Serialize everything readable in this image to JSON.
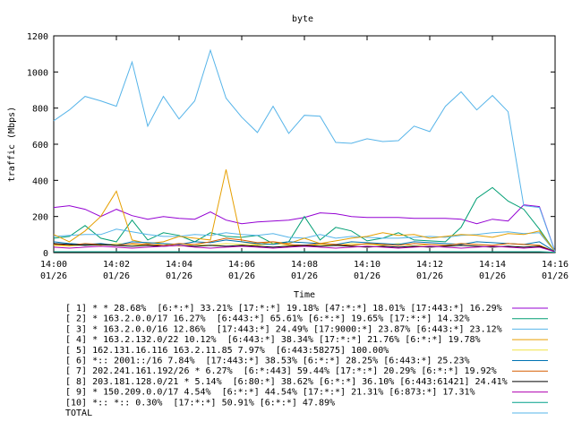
{
  "chart_data": {
    "type": "line",
    "title": "byte",
    "xlabel": "Time",
    "ylabel": "traffic (Mbps)",
    "ylim": [
      0,
      1200
    ],
    "yticks": [
      "0",
      "200",
      "400",
      "600",
      "800",
      "1000",
      "1200"
    ],
    "xlim": [
      0,
      32
    ],
    "xticks": [
      {
        "time": "14:00",
        "date": "01/26"
      },
      {
        "time": "14:02",
        "date": "01/26"
      },
      {
        "time": "14:04",
        "date": "01/26"
      },
      {
        "time": "14:06",
        "date": "01/26"
      },
      {
        "time": "14:08",
        "date": "01/26"
      },
      {
        "time": "14:10",
        "date": "01/26"
      },
      {
        "time": "14:12",
        "date": "01/26"
      },
      {
        "time": "14:14",
        "date": "01/26"
      },
      {
        "time": "14:16",
        "date": "01/26"
      }
    ],
    "x": [
      0,
      1,
      2,
      3,
      4,
      5,
      6,
      7,
      8,
      9,
      10,
      11,
      12,
      13,
      14,
      15,
      16,
      17,
      18,
      19,
      20,
      21,
      22,
      23,
      24,
      25,
      26,
      27,
      28,
      29,
      30,
      31,
      32
    ],
    "series": [
      {
        "name": "[ 1] * * 28.68%  [6:*:*] 33.21% [17:*:*] 19.18% [47:*:*] 18.01% [17:443:*] 16.29%",
        "color": "#9400d3",
        "values": [
          250,
          260,
          240,
          200,
          240,
          205,
          185,
          200,
          190,
          185,
          225,
          180,
          160,
          170,
          175,
          180,
          195,
          220,
          215,
          200,
          195,
          195,
          195,
          190,
          190,
          190,
          185,
          160,
          185,
          175,
          265,
          255,
          5
        ]
      },
      {
        "name": "[ 2] * 163.2.0.0/17 16.27%  [6:443:*] 65.61% [6:*:*] 19.65% [17:*:*] 14.32%",
        "color": "#009e73",
        "values": [
          80,
          90,
          150,
          80,
          60,
          180,
          70,
          110,
          95,
          60,
          110,
          90,
          85,
          95,
          50,
          60,
          200,
          70,
          140,
          120,
          65,
          80,
          110,
          70,
          65,
          60,
          140,
          300,
          360,
          285,
          240,
          130,
          5
        ]
      },
      {
        "name": "[ 3] * 163.2.0.0/16 12.86%  [17:443:*] 24.49% [17:9000:*] 23.87% [6:443:*] 23.12%",
        "color": "#56b4e9",
        "values": [
          90,
          95,
          100,
          100,
          130,
          115,
          100,
          90,
          90,
          100,
          95,
          110,
          100,
          95,
          105,
          85,
          80,
          100,
          80,
          90,
          85,
          80,
          80,
          85,
          90,
          85,
          95,
          100,
          110,
          115,
          105,
          110,
          5
        ]
      },
      {
        "name": "[ 4] * 163.2.132.0/22 10.12%  [6:443:*] 38.34% [17:*:*] 21.76% [6:*:*] 19.78%",
        "color": "#e69f00",
        "values": [
          100,
          60,
          120,
          200,
          340,
          70,
          50,
          60,
          90,
          80,
          70,
          460,
          60,
          45,
          60,
          50,
          80,
          50,
          65,
          80,
          90,
          110,
          95,
          100,
          80,
          90,
          100,
          95,
          85,
          105,
          100,
          120,
          5
        ]
      },
      {
        "name": "[ 5] 162.131.16.116 163.2.11.85 7.97%  [6:443:58275] 100.00%",
        "color": "#f0e442",
        "values": [
          40,
          35,
          45,
          40,
          50,
          45,
          40,
          50,
          35,
          45,
          40,
          50,
          45,
          40,
          50,
          40,
          35,
          45,
          40,
          50,
          45,
          40,
          50,
          35,
          45,
          40,
          50,
          45,
          40,
          50,
          45,
          40,
          5
        ]
      },
      {
        "name": "[ 6] *:: 2001::/16 7.84%  [17:443:*] 38.53% [6:*:*] 28.25% [6:443:*] 25.23%",
        "color": "#0072b2",
        "values": [
          60,
          50,
          45,
          50,
          40,
          60,
          55,
          50,
          45,
          60,
          55,
          70,
          60,
          50,
          45,
          60,
          55,
          50,
          45,
          60,
          55,
          50,
          45,
          60,
          55,
          50,
          45,
          60,
          55,
          50,
          45,
          60,
          5
        ]
      },
      {
        "name": "[ 7] 202.241.161.192/26 * 6.27%  [6:*:443] 59.44% [17:*:*] 20.29% [6:*:*] 19.92%",
        "color": "#d55e00",
        "values": [
          45,
          40,
          50,
          45,
          40,
          50,
          45,
          40,
          50,
          45,
          60,
          80,
          70,
          55,
          60,
          45,
          40,
          50,
          45,
          40,
          50,
          45,
          40,
          50,
          45,
          40,
          50,
          45,
          40,
          50,
          45,
          40,
          5
        ]
      },
      {
        "name": "[ 8] 203.181.128.0/21 * 5.14%  [6:80:*] 38.62% [6:*:*] 36.10% [6:443:61421] 24.41%",
        "color": "#000000",
        "values": [
          50,
          45,
          40,
          45,
          40,
          35,
          40,
          35,
          40,
          35,
          40,
          35,
          40,
          35,
          30,
          35,
          40,
          35,
          40,
          35,
          30,
          35,
          30,
          35,
          30,
          35,
          40,
          35,
          30,
          35,
          30,
          35,
          5
        ]
      },
      {
        "name": "[ 9] * 150.209.0.0/17 4.54%  [6:*:*] 44.54% [17:*:*] 21.31% [6:873:*] 17.31%",
        "color": "#b000b0",
        "values": [
          30,
          25,
          30,
          35,
          30,
          25,
          30,
          35,
          40,
          30,
          25,
          30,
          35,
          30,
          25,
          30,
          35,
          30,
          25,
          30,
          35,
          30,
          25,
          30,
          35,
          30,
          25,
          30,
          35,
          30,
          25,
          30,
          5
        ]
      },
      {
        "name": "[10] *:: *:: 0.30%  [17:*:*] 50.91% [6:*:*] 47.89%",
        "color": "#00a08a",
        "values": [
          5,
          5,
          5,
          5,
          5,
          5,
          5,
          5,
          5,
          5,
          5,
          5,
          5,
          5,
          5,
          5,
          5,
          5,
          5,
          5,
          5,
          5,
          5,
          5,
          5,
          5,
          5,
          5,
          5,
          5,
          5,
          5,
          2
        ]
      },
      {
        "name": "TOTAL",
        "color": "#56b4e9",
        "values": [
          730,
          790,
          865,
          840,
          810,
          1055,
          700,
          865,
          740,
          840,
          1120,
          855,
          750,
          665,
          810,
          660,
          760,
          755,
          610,
          605,
          630,
          615,
          620,
          700,
          670,
          810,
          890,
          790,
          870,
          780,
          260,
          250,
          5
        ]
      }
    ],
    "legend_position": "bottom",
    "grid": false
  }
}
